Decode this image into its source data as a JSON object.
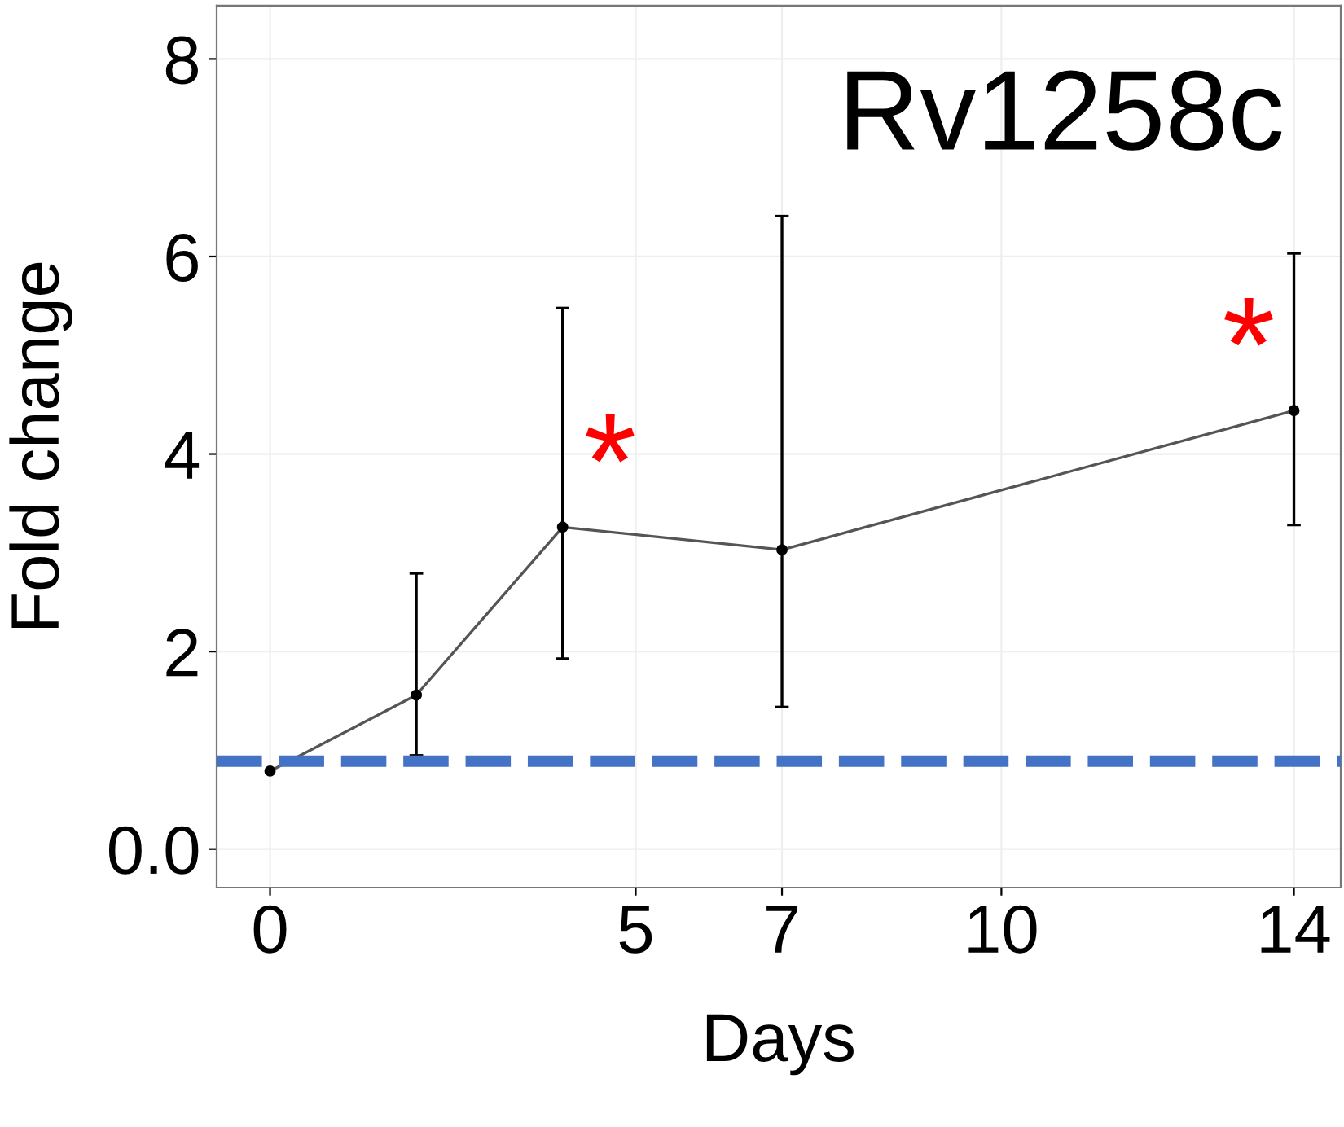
{
  "chart_data": {
    "type": "line",
    "title": "Rv1258c",
    "xlabel": "Days",
    "ylabel": "Fold change",
    "x": [
      0,
      2,
      4,
      7,
      14
    ],
    "series": [
      {
        "color": "#555555",
        "values": [
          0.79,
          1.56,
          3.26,
          3.03,
          4.44
        ],
        "errors": [
          null,
          [
            0.95,
            2.79
          ],
          [
            1.93,
            5.48
          ],
          [
            1.44,
            6.41
          ],
          [
            3.28,
            6.03
          ]
        ]
      }
    ],
    "xlim": [
      -0.73,
      14.64
    ],
    "xticks": [
      0,
      5,
      7,
      10,
      14
    ],
    "ylim": [
      -0.39,
      8.54
    ],
    "yticks": [
      {
        "value": 0,
        "label": "0.0"
      },
      2,
      4,
      6,
      8
    ],
    "ref_lines": [
      {
        "axis": "y",
        "value": 0.89,
        "color": "#4472c4",
        "line_style": "dashed"
      }
    ],
    "annotations": [
      {
        "text": "*",
        "x": 4,
        "y": 3.26
      },
      {
        "text": "*",
        "x": 14,
        "y": 4.44
      }
    ],
    "grid": true,
    "marker": "circle",
    "line_style": "solid"
  }
}
